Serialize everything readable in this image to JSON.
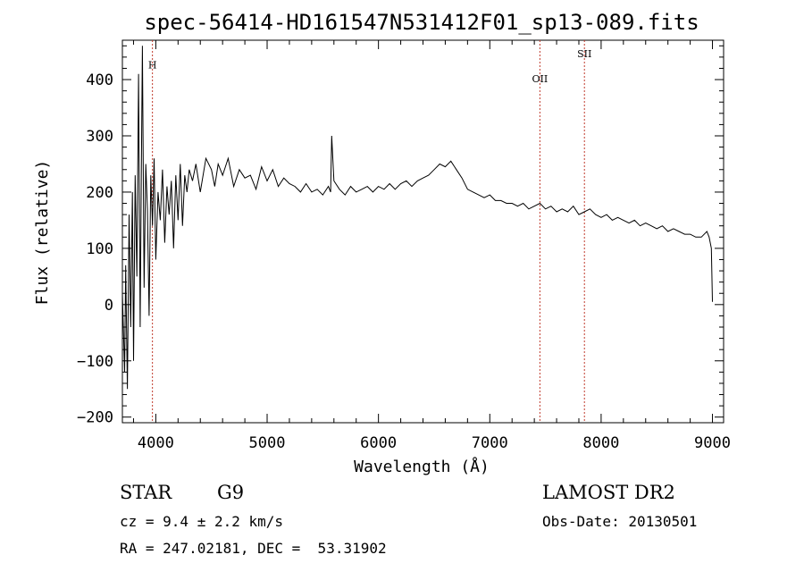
{
  "chart_data": {
    "type": "line",
    "title": "spec-56414-HD161547N531412F01_sp13-089.fits",
    "xlabel": "Wavelength (Å)",
    "ylabel": "Flux (relative)",
    "xlim": [
      3700,
      9100
    ],
    "ylim": [
      -210,
      470
    ],
    "xticks": [
      4000,
      5000,
      6000,
      7000,
      8000,
      9000
    ],
    "xtick_labels": [
      "4000",
      "5000",
      "6000",
      "7000",
      "8000",
      "9000"
    ],
    "yticks": [
      -200,
      -100,
      0,
      100,
      200,
      300,
      400
    ],
    "ytick_labels": [
      "−200",
      "−100",
      "0",
      "100",
      "200",
      "300",
      "400"
    ],
    "grid": false,
    "line_markers": [
      {
        "label": "H",
        "x": 3970,
        "label_y": 420
      },
      {
        "label": "OII",
        "x": 7450,
        "label_y": 395
      },
      {
        "label": "SII",
        "x": 7850,
        "label_y": 440
      }
    ],
    "series": [
      {
        "x": [
          3700,
          3720,
          3730,
          3745,
          3760,
          3775,
          3790,
          3800,
          3815,
          3830,
          3845,
          3860,
          3870,
          3880,
          3895,
          3910,
          3925,
          3940,
          3955,
          3970,
          3985,
          4000,
          4020,
          4040,
          4060,
          4080,
          4100,
          4120,
          4140,
          4160,
          4180,
          4200,
          4220,
          4240,
          4260,
          4280,
          4300,
          4330,
          4360,
          4400,
          4450,
          4500,
          4530,
          4560,
          4600,
          4650,
          4700,
          4750,
          4800,
          4850,
          4900,
          4950,
          5000,
          5050,
          5100,
          5150,
          5200,
          5250,
          5300,
          5350,
          5400,
          5450,
          5500,
          5550,
          5570,
          5580,
          5600,
          5650,
          5700,
          5750,
          5800,
          5850,
          5900,
          5950,
          6000,
          6050,
          6100,
          6150,
          6200,
          6250,
          6300,
          6350,
          6400,
          6450,
          6500,
          6550,
          6600,
          6650,
          6700,
          6750,
          6800,
          6850,
          6900,
          6950,
          7000,
          7050,
          7100,
          7150,
          7200,
          7250,
          7300,
          7350,
          7400,
          7450,
          7500,
          7550,
          7600,
          7650,
          7700,
          7750,
          7800,
          7850,
          7900,
          7950,
          8000,
          8050,
          8100,
          8150,
          8200,
          8250,
          8300,
          8350,
          8400,
          8450,
          8500,
          8550,
          8600,
          8650,
          8700,
          8750,
          8800,
          8850,
          8900,
          8950,
          8970,
          8990,
          9000
        ],
        "y": [
          20,
          -120,
          70,
          -150,
          160,
          -40,
          200,
          -100,
          230,
          50,
          410,
          -40,
          230,
          460,
          30,
          250,
          170,
          -20,
          230,
          140,
          260,
          80,
          200,
          150,
          240,
          110,
          210,
          160,
          220,
          100,
          230,
          150,
          250,
          140,
          230,
          200,
          240,
          220,
          250,
          200,
          260,
          240,
          210,
          250,
          230,
          260,
          210,
          240,
          225,
          230,
          205,
          245,
          220,
          240,
          210,
          225,
          215,
          210,
          200,
          215,
          200,
          205,
          195,
          210,
          200,
          300,
          220,
          205,
          195,
          210,
          200,
          205,
          210,
          200,
          210,
          205,
          215,
          205,
          215,
          220,
          210,
          220,
          225,
          230,
          240,
          250,
          245,
          255,
          240,
          225,
          205,
          200,
          195,
          190,
          195,
          185,
          185,
          180,
          180,
          175,
          180,
          170,
          175,
          180,
          170,
          175,
          165,
          170,
          165,
          175,
          160,
          165,
          170,
          160,
          155,
          160,
          150,
          155,
          150,
          145,
          150,
          140,
          145,
          140,
          135,
          140,
          130,
          135,
          130,
          125,
          125,
          120,
          120,
          130,
          120,
          100,
          5
        ]
      }
    ]
  },
  "info": {
    "class": "STAR",
    "subclass": "G9",
    "survey": "LAMOST DR2",
    "cz": "cz = 9.4 ± 2.2 km/s",
    "obsdate": "Obs-Date: 20130501",
    "coords": "RA = 247.02181, DEC =  53.31902"
  }
}
